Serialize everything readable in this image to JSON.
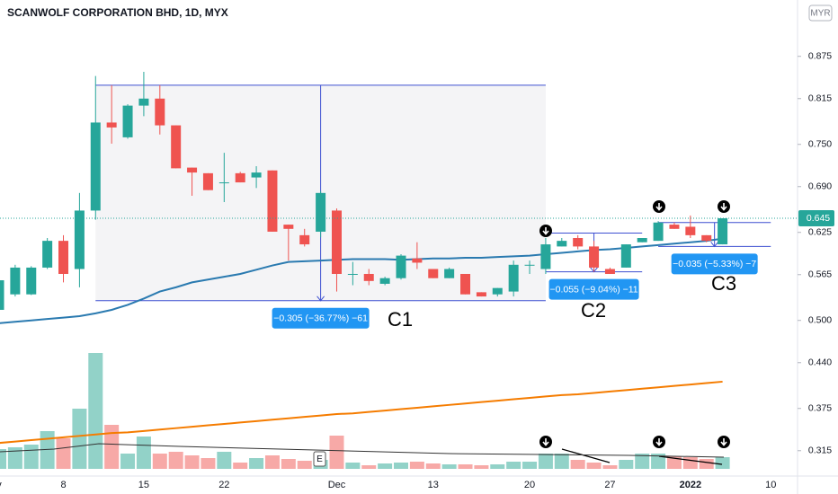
{
  "chart_data": {
    "type": "candlestick",
    "title": "SCANWOLF CORPORATION BHD, 1D, MYX",
    "currency": "MYR",
    "categories": [
      "v",
      null,
      null,
      null,
      "8",
      null,
      null,
      null,
      null,
      "15",
      null,
      null,
      null,
      null,
      "22",
      null,
      null,
      null,
      null,
      null,
      null,
      "Dec",
      null,
      null,
      null,
      null,
      null,
      "13",
      null,
      null,
      null,
      null,
      null,
      "20",
      null,
      null,
      null,
      null,
      "27",
      null,
      null,
      null,
      null,
      "2022",
      null,
      null,
      null,
      null,
      "10"
    ],
    "open": [
      0.515,
      0.537,
      0.537,
      0.575,
      0.613,
      0.573,
      0.656,
      0.781,
      0.76,
      0.805,
      0.815,
      0.777,
      0.717,
      0.709,
      0.696,
      0.709,
      0.703,
      0.713,
      0.636,
      0.621,
      0.626,
      0.656,
      0.566,
      0.566,
      0.552,
      0.56,
      0.588,
      0.573,
      0.56,
      0.566,
      0.54,
      0.537,
      0.541,
      0.579,
      0.573,
      0.605,
      0.617,
      0.605,
      0.573,
      0.575,
      0.611,
      0.613,
      0.636,
      0.633,
      0.621,
      0.608,
      null,
      null,
      null
    ],
    "high": [
      0.56,
      0.579,
      0.577,
      0.617,
      0.621,
      0.681,
      0.847,
      0.834,
      0.807,
      0.853,
      0.834,
      0.777,
      0.717,
      0.709,
      0.738,
      0.711,
      0.719,
      0.713,
      0.636,
      0.63,
      0.684,
      0.659,
      0.583,
      0.573,
      0.562,
      0.594,
      0.611,
      0.573,
      0.575,
      0.566,
      0.54,
      0.546,
      0.585,
      0.585,
      0.617,
      0.617,
      0.621,
      0.613,
      0.575,
      0.608,
      0.617,
      0.641,
      0.639,
      0.649,
      0.621,
      0.645,
      null,
      null,
      null
    ],
    "low": [
      0.512,
      0.534,
      0.536,
      0.573,
      0.554,
      0.547,
      0.643,
      0.751,
      0.758,
      0.79,
      0.764,
      0.716,
      0.677,
      0.685,
      0.668,
      0.696,
      0.688,
      0.626,
      0.585,
      0.605,
      0.618,
      0.541,
      0.55,
      0.55,
      0.55,
      0.558,
      0.573,
      0.56,
      0.56,
      0.537,
      0.534,
      0.534,
      0.534,
      0.566,
      0.566,
      0.605,
      0.601,
      0.569,
      0.566,
      0.575,
      0.611,
      0.613,
      0.63,
      0.617,
      0.611,
      0.608,
      null,
      null,
      null
    ],
    "close": [
      0.557,
      0.575,
      0.575,
      0.613,
      0.566,
      0.656,
      0.781,
      0.774,
      0.805,
      0.815,
      0.777,
      0.716,
      0.71,
      0.685,
      0.696,
      0.696,
      0.71,
      0.626,
      0.63,
      0.608,
      0.681,
      0.566,
      0.566,
      0.556,
      0.56,
      0.592,
      0.582,
      0.56,
      0.573,
      0.537,
      0.534,
      0.546,
      0.579,
      0.579,
      0.608,
      0.613,
      0.605,
      0.575,
      0.566,
      0.608,
      0.617,
      0.639,
      0.63,
      0.621,
      0.613,
      0.645,
      null,
      null,
      null
    ],
    "volume": [
      22,
      24,
      27,
      42,
      34,
      67,
      129,
      49,
      17,
      36,
      17,
      19,
      15,
      12,
      19,
      7,
      12,
      15,
      11,
      9,
      10,
      37,
      7,
      4,
      6,
      7,
      8,
      6,
      5,
      5,
      4,
      5,
      8,
      8,
      17,
      17,
      10,
      7,
      4,
      10,
      17,
      17,
      14,
      13,
      11,
      13,
      null,
      null,
      null
    ],
    "up_color": "#26a69a",
    "down_color": "#ef5350",
    "volume_up_color": "#92d2c8",
    "volume_down_color": "#f7a9a7",
    "lines": [
      {
        "color": "#2a7ab0",
        "values": [
          0.496,
          0.498,
          0.5,
          0.502,
          0.504,
          0.506,
          0.51,
          0.515,
          0.522,
          0.531,
          0.541,
          0.547,
          0.554,
          0.558,
          0.562,
          0.566,
          0.572,
          0.578,
          0.583,
          0.584,
          0.585,
          0.586,
          0.587,
          0.587,
          0.587,
          0.586,
          0.587,
          0.588,
          0.588,
          0.589,
          0.589,
          0.59,
          0.591,
          0.592,
          0.594,
          0.596,
          0.598,
          0.6,
          0.601,
          0.603,
          0.605,
          0.607,
          0.609,
          0.611,
          0.613,
          0.616,
          null,
          null,
          null
        ]
      },
      {
        "color": "#f57c00",
        "values": [
          0.326,
          0.328,
          0.33,
          0.332,
          0.334,
          0.336,
          0.338,
          0.34,
          0.341,
          0.343,
          0.345,
          0.347,
          0.349,
          0.351,
          0.353,
          0.355,
          0.357,
          0.359,
          0.361,
          0.363,
          0.365,
          0.367,
          0.368,
          0.37,
          0.372,
          0.374,
          0.376,
          0.378,
          0.38,
          0.382,
          0.384,
          0.386,
          0.388,
          0.39,
          0.392,
          0.394,
          0.395,
          0.397,
          0.399,
          0.401,
          0.403,
          0.405,
          0.407,
          0.409,
          0.411,
          0.413,
          null,
          null,
          null
        ]
      }
    ],
    "ylim": [
      0.279,
      0.955
    ],
    "yticks": [
      {
        "value": 0.875,
        "label": "0.875"
      },
      {
        "value": 0.815,
        "label": "0.815"
      },
      {
        "value": 0.75,
        "label": "0.750"
      },
      {
        "value": 0.69,
        "label": "0.690"
      },
      {
        "value": 0.625,
        "label": "0.625"
      },
      {
        "value": 0.565,
        "label": "0.565"
      },
      {
        "value": 0.5,
        "label": "0.500"
      },
      {
        "value": 0.44,
        "label": "0.440"
      },
      {
        "value": 0.375,
        "label": "0.375"
      },
      {
        "value": 0.315,
        "label": "0.315"
      }
    ],
    "last_price": 0.645,
    "event_marker": "E",
    "annotations": [
      {
        "text": "−0.305 (−36.77%) −61",
        "tag": "C1",
        "high": 0.834,
        "low": 0.528
      },
      {
        "text": "−0.055 (−9.04%) −11",
        "tag": "C2",
        "high": 0.624,
        "low": 0.569
      },
      {
        "text": "−0.035 (−5.33%) −7",
        "tag": "C3",
        "high": 0.639,
        "low": 0.605
      }
    ]
  }
}
